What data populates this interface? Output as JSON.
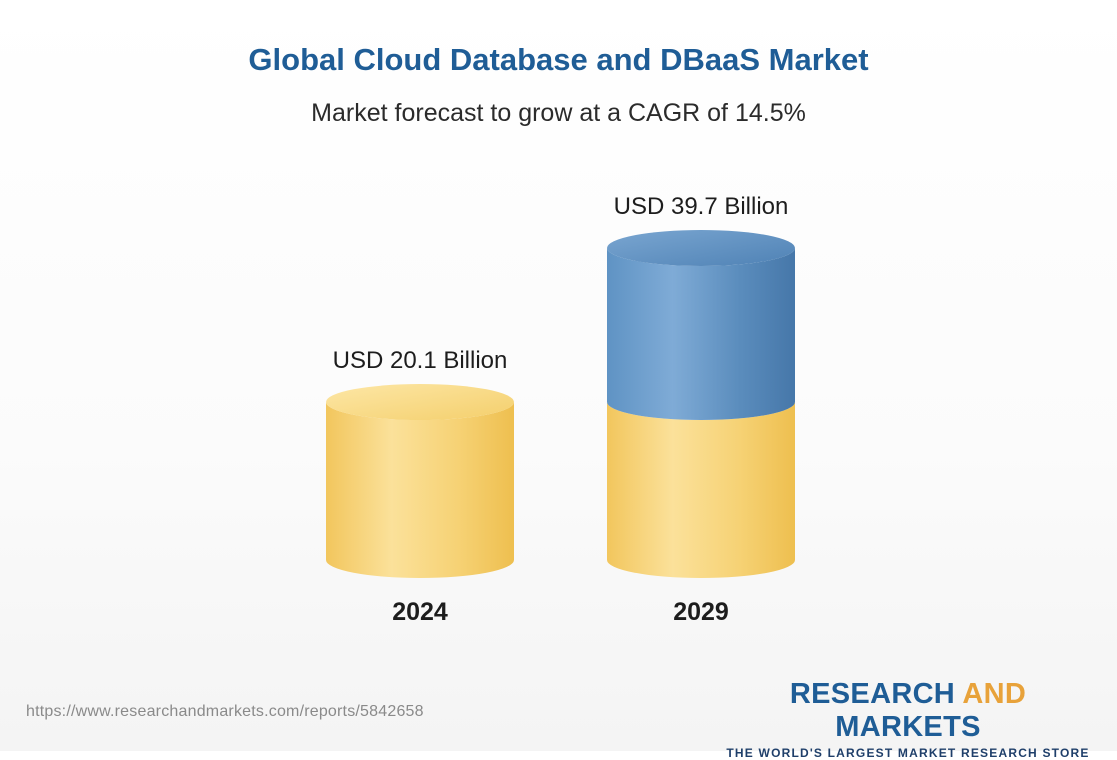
{
  "header": {
    "title": "Global Cloud Database and DBaaS Market",
    "subtitle": "Market forecast to grow at a CAGR of 14.5%"
  },
  "chart_data": {
    "type": "bar",
    "style": "3d-cylinder",
    "title": "Global Cloud Database and DBaaS Market",
    "subtitle": "Market forecast to grow at a CAGR of 14.5%",
    "categories": [
      "2024",
      "2029"
    ],
    "values": [
      20.1,
      39.7
    ],
    "data_labels": [
      "USD 20.1 Billion",
      "USD 39.7 Billion"
    ],
    "unit": "USD Billion",
    "cagr_percent": 14.5,
    "grid": false,
    "legend": "none",
    "colors": {
      "base_fill": "#f5d272",
      "growth_fill": "#5b8dbd",
      "title_color": "#1f5d96"
    }
  },
  "footer": {
    "source_url": "https://www.researchandmarkets.com/reports/5842658",
    "brand_part1": "RESEARCH ",
    "brand_part2": "AND",
    "brand_part3": " MARKETS",
    "tagline": "THE WORLD'S LARGEST MARKET RESEARCH STORE"
  }
}
